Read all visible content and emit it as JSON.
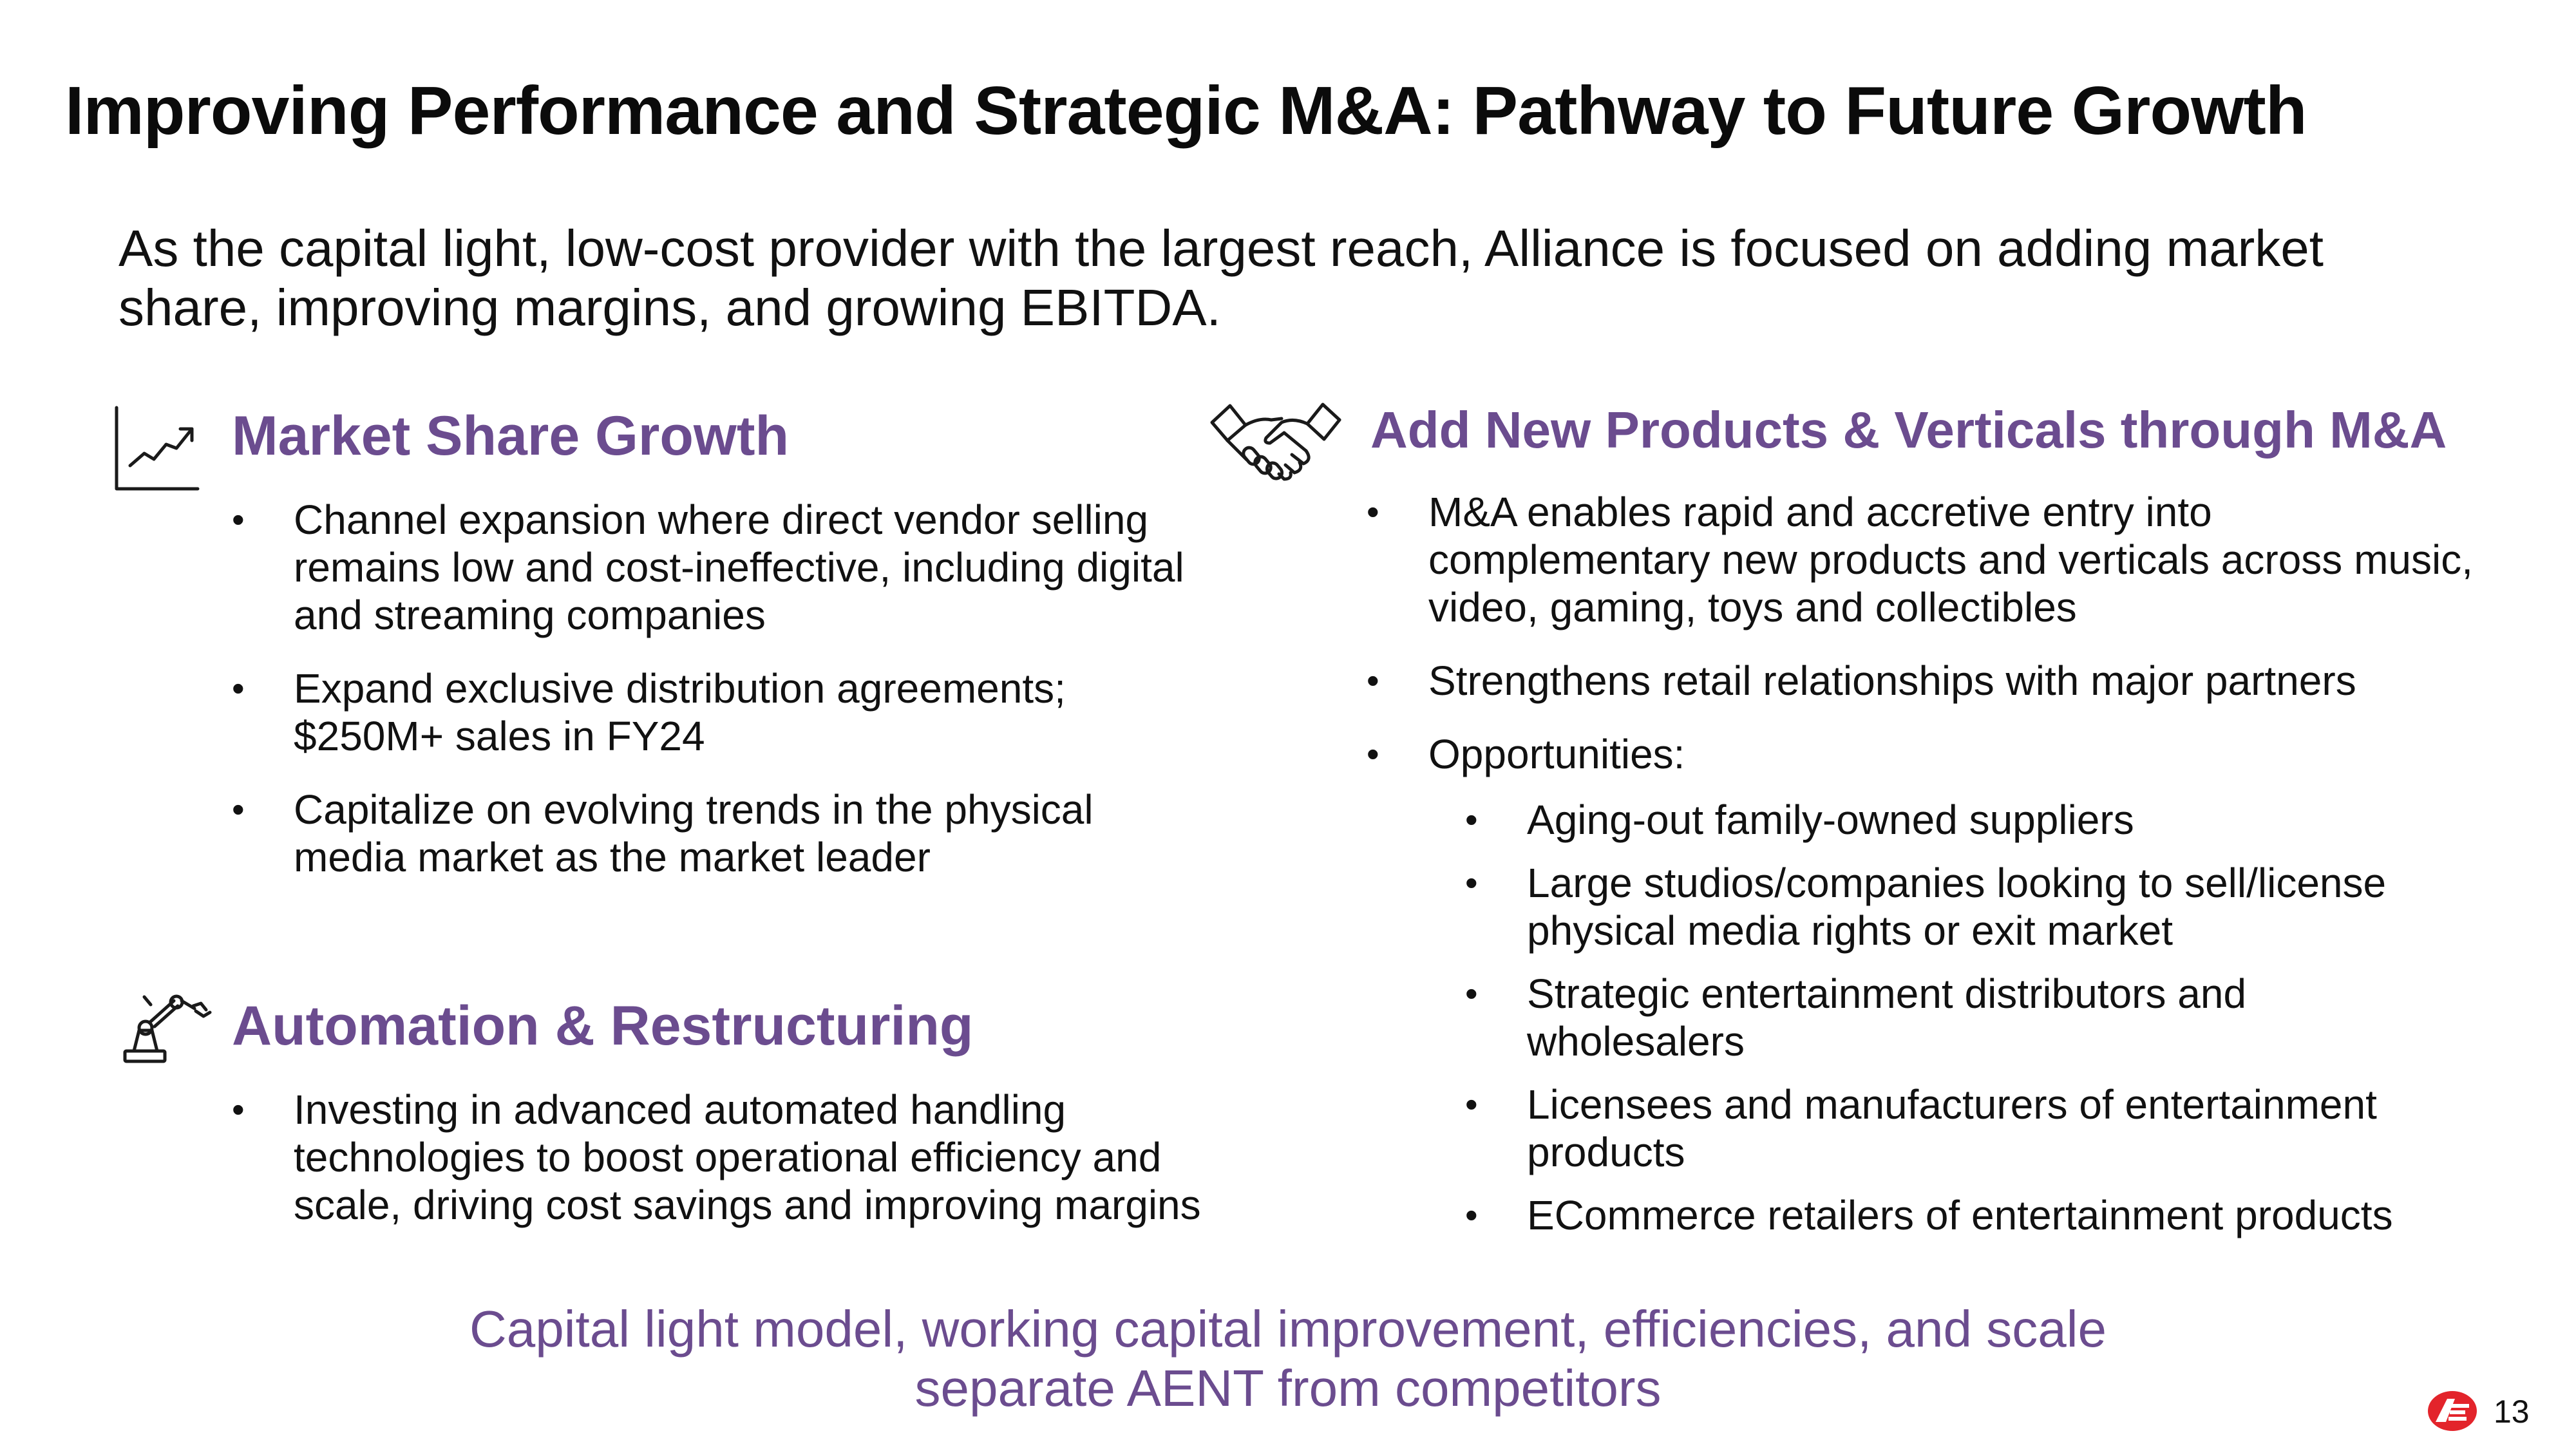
{
  "colors": {
    "accent": "#6b4c8f",
    "text": "#111111",
    "logo_red": "#e3242b"
  },
  "title": "Improving Performance and Strategic M&A: Pathway to Future Growth",
  "intro": "As the capital light, low-cost provider with the largest reach, Alliance is focused on adding market share, improving margins, and growing EBITDA.",
  "sections": {
    "market_share": {
      "icon": "trend-chart-icon",
      "heading": "Market Share Growth",
      "bullets": [
        "Channel expansion where direct vendor selling remains low and cost-ineffective, including digital and streaming companies",
        "Expand exclusive distribution agreements; $250M+ sales in FY24",
        "Capitalize on evolving trends in the physical media market as the market leader"
      ]
    },
    "automation": {
      "icon": "robot-arm-icon",
      "heading": "Automation & Restructuring",
      "bullets": [
        "Investing in advanced automated handling technologies to boost operational efficiency and scale, driving cost savings and improving margins"
      ]
    },
    "m_and_a": {
      "icon": "handshake-icon",
      "heading": "Add New Products & Verticals through M&A",
      "bullets": [
        "M&A enables rapid and accretive entry into complementary new products and verticals across music, video, gaming, toys and collectibles",
        "Strengthens retail relationships with major partners",
        "Opportunities:"
      ],
      "sub_bullets": [
        "Aging-out family-owned suppliers",
        "Large studios/companies looking to sell/license physical media rights or exit market",
        "Strategic entertainment distributors and wholesalers",
        "Licensees and manufacturers of entertainment products",
        "ECommerce retailers of entertainment products"
      ]
    }
  },
  "footer": {
    "line1": "Capital light model, working capital improvement, efficiencies, and scale",
    "line2": "separate AENT from competitors"
  },
  "logo_icon": "ae-logo-icon",
  "page_number": "13"
}
